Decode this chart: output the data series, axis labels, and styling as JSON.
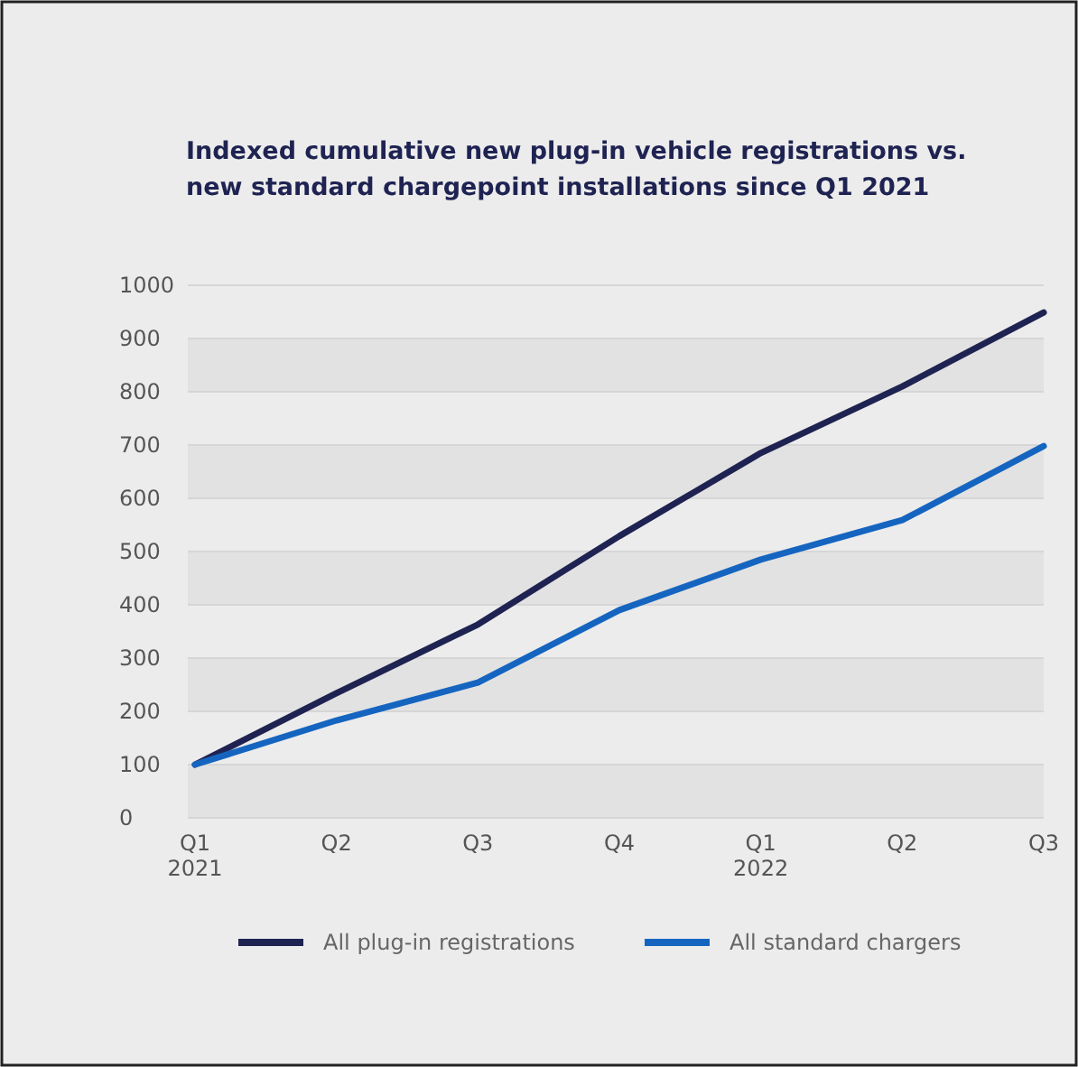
{
  "chart_data": {
    "type": "line",
    "title": "Indexed cumulative new plug-in vehicle registrations vs. new standard chargepoint installations since Q1 2021",
    "categories": [
      "Q1\n2021",
      "Q2",
      "Q3",
      "Q4",
      "Q1\n2022",
      "Q2",
      "Q3"
    ],
    "series": [
      {
        "name": "All plug-in registrations",
        "color": "#1f2352",
        "values": [
          100,
          234,
          363,
          529,
          685,
          810,
          949
        ]
      },
      {
        "name": "All standard chargers",
        "color": "#1565c0",
        "values": [
          100,
          183,
          254,
          390,
          485,
          559,
          698
        ]
      }
    ],
    "ylim": [
      0,
      1000
    ],
    "yticks": [
      0,
      100,
      200,
      300,
      400,
      500,
      600,
      700,
      800,
      900,
      1000
    ],
    "grid": "y",
    "legend": "bottom",
    "marker": "none",
    "line_style": "solid"
  }
}
